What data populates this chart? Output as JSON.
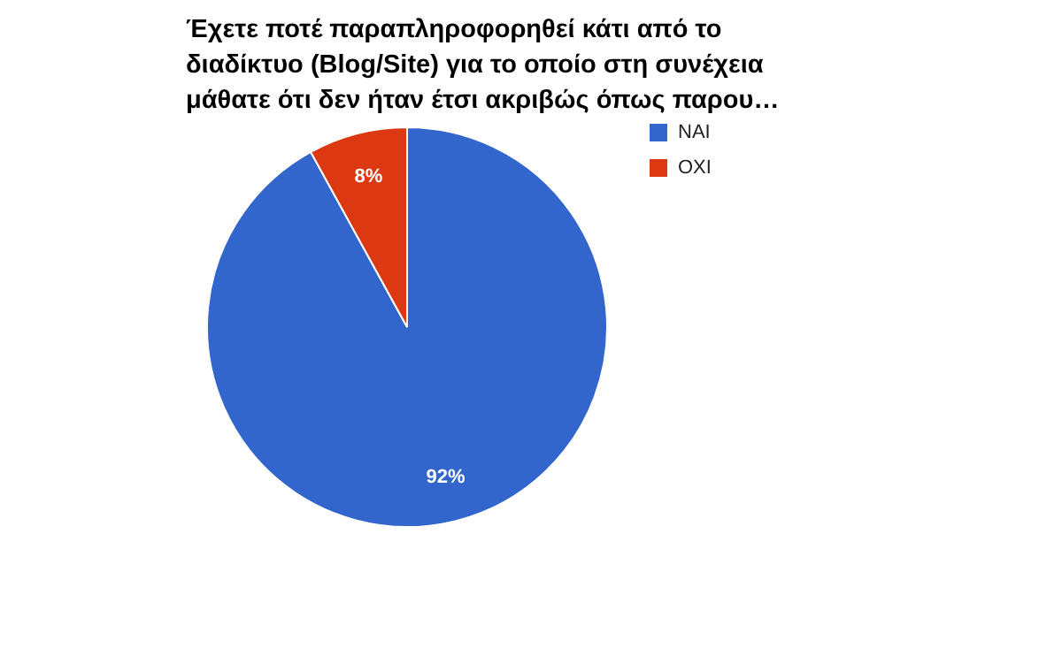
{
  "chart_data": {
    "type": "pie",
    "title": "Έχετε ποτέ παραπληροφορηθεί κάτι από το διαδίκτυο (Blog/Site) για το οποίο στη συνέχεια μάθατε ότι δεν ήταν έτσι ακριβώς όπως παρου…",
    "categories": [
      "NAI",
      "OXI"
    ],
    "values": [
      92,
      8
    ],
    "colors": [
      "#3366cc",
      "#dc3912"
    ],
    "value_labels": [
      "92%",
      "8%"
    ],
    "legend": "right"
  }
}
